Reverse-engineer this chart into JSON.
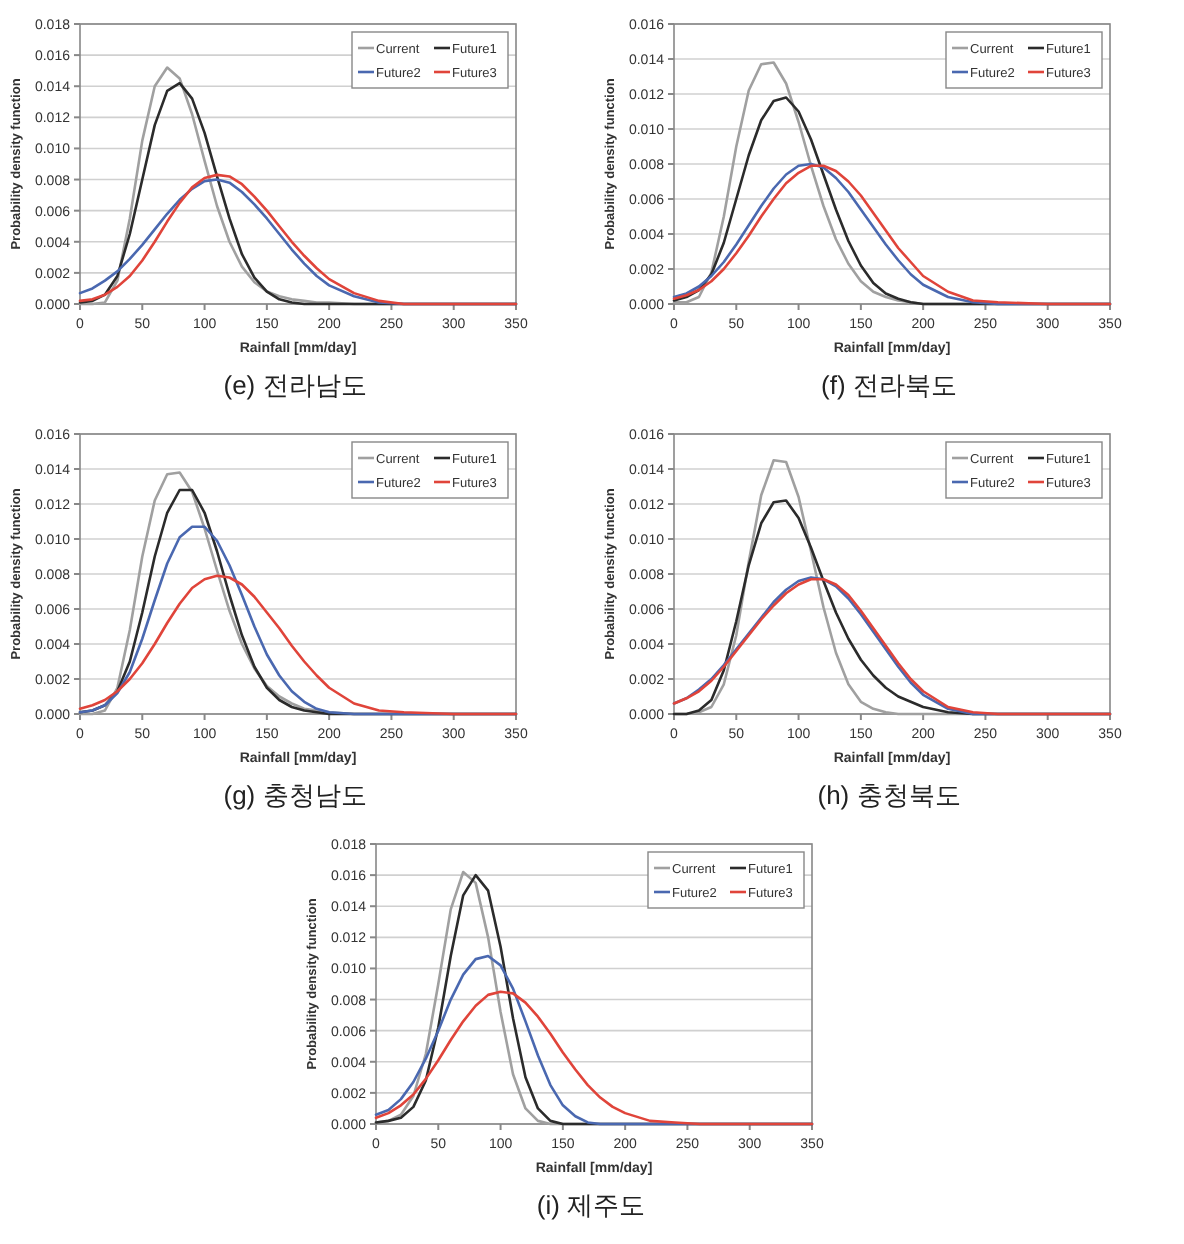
{
  "chart_data": [
    {
      "type": "line",
      "title": "(e) 전라남도",
      "xlabel": "Rainfall [mm/day]",
      "ylabel": "Probability density function",
      "grid": "y",
      "legend": "top right",
      "xlim": [
        0,
        350
      ],
      "xticks": [
        0,
        50,
        100,
        150,
        200,
        250,
        300,
        350
      ],
      "ylim": [
        0,
        0.018
      ],
      "yticks": [
        {
          "value": 0,
          "label": "0.000"
        },
        {
          "value": 0.002,
          "label": "0.002"
        },
        {
          "value": 0.004,
          "label": "0.004"
        },
        {
          "value": 0.006,
          "label": "0.006"
        },
        {
          "value": 0.008,
          "label": "0.008"
        },
        {
          "value": 0.01,
          "label": "0.010"
        },
        {
          "value": 0.012,
          "label": "0.012"
        },
        {
          "value": 0.014,
          "label": "0.014"
        },
        {
          "value": 0.016,
          "label": "0.016"
        },
        {
          "value": 0.018,
          "label": "0.018"
        }
      ],
      "x": [
        0,
        10,
        20,
        30,
        40,
        50,
        60,
        70,
        80,
        90,
        100,
        110,
        120,
        130,
        140,
        150,
        160,
        170,
        180,
        190,
        200,
        220,
        240,
        260,
        300,
        350
      ],
      "series": [
        {
          "name": "Current",
          "color": "#a0a0a0",
          "values": [
            0,
            0,
            0.0001,
            0.0015,
            0.0055,
            0.0105,
            0.014,
            0.0152,
            0.0145,
            0.0122,
            0.0092,
            0.0063,
            0.004,
            0.0024,
            0.0014,
            0.0008,
            0.0005,
            0.0003,
            0.0002,
            0.0001,
            0.0001,
            0,
            0,
            0,
            0,
            0
          ]
        },
        {
          "name": "Future1",
          "color": "#2b2b2b",
          "values": [
            0.0001,
            0.0002,
            0.0006,
            0.0018,
            0.0045,
            0.008,
            0.0115,
            0.0137,
            0.0142,
            0.0132,
            0.011,
            0.0082,
            0.0055,
            0.0032,
            0.0017,
            0.0008,
            0.0003,
            0.0001,
            0,
            0,
            0,
            0,
            0,
            0,
            0,
            0
          ]
        },
        {
          "name": "Future2",
          "color": "#4a68b0",
          "values": [
            0.0007,
            0.001,
            0.0015,
            0.0021,
            0.0029,
            0.0038,
            0.0048,
            0.0058,
            0.0067,
            0.0074,
            0.0079,
            0.008,
            0.0078,
            0.0072,
            0.0064,
            0.0055,
            0.0045,
            0.0035,
            0.0026,
            0.0018,
            0.0012,
            0.0005,
            0.0001,
            0,
            0,
            0
          ]
        },
        {
          "name": "Future3",
          "color": "#e0443a",
          "values": [
            0.0002,
            0.0003,
            0.0006,
            0.0011,
            0.0018,
            0.0028,
            0.004,
            0.0053,
            0.0065,
            0.0075,
            0.0081,
            0.0083,
            0.0082,
            0.0077,
            0.0069,
            0.006,
            0.005,
            0.004,
            0.0031,
            0.0023,
            0.0016,
            0.0007,
            0.0002,
            0,
            0,
            0
          ]
        }
      ]
    },
    {
      "type": "line",
      "title": "(f) 전라북도",
      "xlabel": "Rainfall [mm/day]",
      "ylabel": "Probability density function",
      "grid": "y",
      "legend": "top right",
      "xlim": [
        0,
        350
      ],
      "xticks": [
        0,
        50,
        100,
        150,
        200,
        250,
        300,
        350
      ],
      "ylim": [
        0,
        0.016
      ],
      "yticks": [
        {
          "value": 0,
          "label": "0.000"
        },
        {
          "value": 0.002,
          "label": "0.002"
        },
        {
          "value": 0.004,
          "label": "0.004"
        },
        {
          "value": 0.006,
          "label": "0.006"
        },
        {
          "value": 0.008,
          "label": "0.008"
        },
        {
          "value": 0.01,
          "label": "0.010"
        },
        {
          "value": 0.012,
          "label": "0.012"
        },
        {
          "value": 0.014,
          "label": "0.014"
        },
        {
          "value": 0.016,
          "label": "0.016"
        }
      ],
      "x": [
        0,
        10,
        20,
        30,
        40,
        50,
        60,
        70,
        80,
        90,
        100,
        110,
        120,
        130,
        140,
        150,
        160,
        170,
        180,
        190,
        200,
        220,
        240,
        260,
        300,
        350
      ],
      "series": [
        {
          "name": "Current",
          "color": "#a0a0a0",
          "values": [
            0.0001,
            0.0001,
            0.0004,
            0.0018,
            0.005,
            0.009,
            0.0122,
            0.0137,
            0.0138,
            0.0126,
            0.0104,
            0.0079,
            0.0056,
            0.0037,
            0.0023,
            0.0013,
            0.0007,
            0.0004,
            0.0002,
            0.0001,
            0,
            0,
            0,
            0,
            0,
            0
          ]
        },
        {
          "name": "Future1",
          "color": "#2b2b2b",
          "values": [
            0.0002,
            0.0004,
            0.0008,
            0.0017,
            0.0035,
            0.006,
            0.0085,
            0.0105,
            0.0116,
            0.0118,
            0.011,
            0.0094,
            0.0074,
            0.0054,
            0.0036,
            0.0022,
            0.0012,
            0.0006,
            0.0003,
            0.0001,
            0,
            0,
            0,
            0,
            0,
            0
          ]
        },
        {
          "name": "Future2",
          "color": "#4a68b0",
          "values": [
            0.0004,
            0.0006,
            0.001,
            0.0016,
            0.0024,
            0.0034,
            0.0045,
            0.0056,
            0.0066,
            0.0074,
            0.0079,
            0.008,
            0.0078,
            0.0072,
            0.0064,
            0.0054,
            0.0044,
            0.0034,
            0.0025,
            0.0017,
            0.0011,
            0.0004,
            0.0001,
            0,
            0,
            0
          ]
        },
        {
          "name": "Future3",
          "color": "#e0443a",
          "values": [
            0.0003,
            0.0005,
            0.0008,
            0.0013,
            0.002,
            0.0029,
            0.0039,
            0.005,
            0.006,
            0.0069,
            0.0075,
            0.0079,
            0.0079,
            0.0076,
            0.007,
            0.0062,
            0.0052,
            0.0042,
            0.0032,
            0.0024,
            0.0016,
            0.0007,
            0.0002,
            0.0001,
            0,
            0
          ]
        }
      ]
    },
    {
      "type": "line",
      "title": "(g) 충청남도",
      "xlabel": "Rainfall [mm/day]",
      "ylabel": "Probability density function",
      "grid": "y",
      "legend": "top right",
      "xlim": [
        0,
        350
      ],
      "xticks": [
        0,
        50,
        100,
        150,
        200,
        250,
        300,
        350
      ],
      "ylim": [
        0,
        0.016
      ],
      "yticks": [
        {
          "value": 0,
          "label": "0.000"
        },
        {
          "value": 0.002,
          "label": "0.002"
        },
        {
          "value": 0.004,
          "label": "0.004"
        },
        {
          "value": 0.006,
          "label": "0.006"
        },
        {
          "value": 0.008,
          "label": "0.008"
        },
        {
          "value": 0.01,
          "label": "0.010"
        },
        {
          "value": 0.012,
          "label": "0.012"
        },
        {
          "value": 0.014,
          "label": "0.014"
        },
        {
          "value": 0.016,
          "label": "0.016"
        }
      ],
      "x": [
        0,
        10,
        20,
        30,
        40,
        50,
        60,
        70,
        80,
        90,
        100,
        110,
        120,
        130,
        140,
        150,
        160,
        170,
        180,
        190,
        200,
        220,
        240,
        260,
        300,
        350
      ],
      "series": [
        {
          "name": "Current",
          "color": "#a0a0a0",
          "values": [
            0,
            0,
            0.0002,
            0.0015,
            0.0048,
            0.009,
            0.0122,
            0.0137,
            0.0138,
            0.0127,
            0.0106,
            0.0082,
            0.0059,
            0.004,
            0.0026,
            0.0016,
            0.001,
            0.0006,
            0.0003,
            0.0002,
            0.0001,
            0,
            0,
            0,
            0,
            0
          ]
        },
        {
          "name": "Future1",
          "color": "#2b2b2b",
          "values": [
            0.0001,
            0.0002,
            0.0005,
            0.0013,
            0.003,
            0.0058,
            0.009,
            0.0115,
            0.0128,
            0.0128,
            0.0115,
            0.0093,
            0.0068,
            0.0045,
            0.0027,
            0.0015,
            0.0008,
            0.0004,
            0.0002,
            0.0001,
            0,
            0,
            0,
            0,
            0,
            0
          ]
        },
        {
          "name": "Future2",
          "color": "#4a68b0",
          "values": [
            0.0001,
            0.0002,
            0.0005,
            0.0012,
            0.0024,
            0.0043,
            0.0065,
            0.0086,
            0.0101,
            0.0107,
            0.0107,
            0.0099,
            0.0085,
            0.0068,
            0.005,
            0.0034,
            0.0022,
            0.0013,
            0.0007,
            0.0003,
            0.0001,
            0,
            0,
            0,
            0,
            0
          ]
        },
        {
          "name": "Future3",
          "color": "#e0443a",
          "values": [
            0.0003,
            0.0005,
            0.0008,
            0.0013,
            0.002,
            0.0029,
            0.004,
            0.0052,
            0.0063,
            0.0072,
            0.0077,
            0.0079,
            0.0078,
            0.0074,
            0.0067,
            0.0058,
            0.0049,
            0.0039,
            0.003,
            0.0022,
            0.0015,
            0.0006,
            0.0002,
            0.0001,
            0,
            0
          ]
        }
      ]
    },
    {
      "type": "line",
      "title": "(h) 충청북도",
      "xlabel": "Rainfall [mm/day]",
      "ylabel": "Probability density function",
      "grid": "y",
      "legend": "top right",
      "xlim": [
        0,
        350
      ],
      "xticks": [
        0,
        50,
        100,
        150,
        200,
        250,
        300,
        350
      ],
      "ylim": [
        0,
        0.016
      ],
      "yticks": [
        {
          "value": 0,
          "label": "0.000"
        },
        {
          "value": 0.002,
          "label": "0.002"
        },
        {
          "value": 0.004,
          "label": "0.004"
        },
        {
          "value": 0.006,
          "label": "0.006"
        },
        {
          "value": 0.008,
          "label": "0.008"
        },
        {
          "value": 0.01,
          "label": "0.010"
        },
        {
          "value": 0.012,
          "label": "0.012"
        },
        {
          "value": 0.014,
          "label": "0.014"
        },
        {
          "value": 0.016,
          "label": "0.016"
        }
      ],
      "x": [
        0,
        10,
        20,
        30,
        40,
        50,
        60,
        70,
        80,
        90,
        100,
        110,
        120,
        130,
        140,
        150,
        160,
        170,
        180,
        190,
        200,
        220,
        240,
        260,
        300,
        350
      ],
      "series": [
        {
          "name": "Current",
          "color": "#a0a0a0",
          "values": [
            0,
            0,
            0.0001,
            0.0004,
            0.0017,
            0.0045,
            0.0087,
            0.0125,
            0.0145,
            0.0144,
            0.0124,
            0.0093,
            0.0061,
            0.0035,
            0.0017,
            0.0007,
            0.0003,
            0.0001,
            0,
            0,
            0,
            0,
            0,
            0,
            0,
            0
          ]
        },
        {
          "name": "Future1",
          "color": "#2b2b2b",
          "values": [
            0,
            0,
            0.0002,
            0.0008,
            0.0025,
            0.0053,
            0.0085,
            0.0109,
            0.0121,
            0.0122,
            0.0112,
            0.0095,
            0.0076,
            0.0058,
            0.0043,
            0.0031,
            0.0022,
            0.0015,
            0.001,
            0.0007,
            0.0004,
            0.0001,
            0,
            0,
            0,
            0
          ]
        },
        {
          "name": "Future2",
          "color": "#4a68b0",
          "values": [
            0.0006,
            0.0009,
            0.0014,
            0.002,
            0.0028,
            0.0037,
            0.0046,
            0.0055,
            0.0064,
            0.0071,
            0.0076,
            0.0078,
            0.0077,
            0.0073,
            0.0066,
            0.0057,
            0.0047,
            0.0037,
            0.0027,
            0.0018,
            0.0011,
            0.0003,
            0,
            0,
            0,
            0
          ]
        },
        {
          "name": "Future3",
          "color": "#e0443a",
          "values": [
            0.0006,
            0.0009,
            0.0013,
            0.0019,
            0.0027,
            0.0036,
            0.0045,
            0.0054,
            0.0062,
            0.0069,
            0.0074,
            0.0077,
            0.0077,
            0.0074,
            0.0068,
            0.0059,
            0.0049,
            0.0039,
            0.0029,
            0.002,
            0.0013,
            0.0004,
            0.0001,
            0,
            0,
            0
          ]
        }
      ]
    },
    {
      "type": "line",
      "title": "(i) 제주도",
      "xlabel": "Rainfall [mm/day]",
      "ylabel": "Probability density function",
      "grid": "y",
      "legend": "top right",
      "xlim": [
        0,
        350
      ],
      "xticks": [
        0,
        50,
        100,
        150,
        200,
        250,
        300,
        350
      ],
      "ylim": [
        0,
        0.018
      ],
      "yticks": [
        {
          "value": 0,
          "label": "0.000"
        },
        {
          "value": 0.002,
          "label": "0.002"
        },
        {
          "value": 0.004,
          "label": "0.004"
        },
        {
          "value": 0.006,
          "label": "0.006"
        },
        {
          "value": 0.008,
          "label": "0.008"
        },
        {
          "value": 0.01,
          "label": "0.010"
        },
        {
          "value": 0.012,
          "label": "0.012"
        },
        {
          "value": 0.014,
          "label": "0.014"
        },
        {
          "value": 0.016,
          "label": "0.016"
        },
        {
          "value": 0.018,
          "label": "0.018"
        }
      ],
      "x": [
        0,
        10,
        20,
        30,
        40,
        50,
        60,
        70,
        80,
        90,
        100,
        110,
        120,
        130,
        140,
        150,
        160,
        170,
        180,
        190,
        200,
        220,
        240,
        260,
        300,
        350
      ],
      "series": [
        {
          "name": "Current",
          "color": "#a0a0a0",
          "values": [
            0.0001,
            0.0002,
            0.0006,
            0.0018,
            0.0045,
            0.009,
            0.0138,
            0.0162,
            0.0155,
            0.012,
            0.0072,
            0.0032,
            0.001,
            0.0002,
            0,
            0,
            0,
            0,
            0,
            0,
            0,
            0,
            0,
            0,
            0,
            0
          ]
        },
        {
          "name": "Future1",
          "color": "#2b2b2b",
          "values": [
            0.0001,
            0.0002,
            0.0004,
            0.0011,
            0.0028,
            0.0062,
            0.0108,
            0.0147,
            0.016,
            0.015,
            0.0114,
            0.0068,
            0.003,
            0.001,
            0.0002,
            0,
            0,
            0,
            0,
            0,
            0,
            0,
            0,
            0,
            0,
            0
          ]
        },
        {
          "name": "Future2",
          "color": "#4a68b0",
          "values": [
            0.0006,
            0.0009,
            0.0016,
            0.0027,
            0.0042,
            0.006,
            0.008,
            0.0096,
            0.0106,
            0.0108,
            0.0102,
            0.0087,
            0.0066,
            0.0044,
            0.0025,
            0.0012,
            0.0005,
            0.0001,
            0,
            0,
            0,
            0,
            0,
            0,
            0,
            0
          ]
        },
        {
          "name": "Future3",
          "color": "#e0443a",
          "values": [
            0.0004,
            0.0007,
            0.0012,
            0.0019,
            0.0029,
            0.0041,
            0.0054,
            0.0066,
            0.0076,
            0.0083,
            0.0085,
            0.0084,
            0.0078,
            0.0069,
            0.0058,
            0.0046,
            0.0035,
            0.0025,
            0.0017,
            0.0011,
            0.0007,
            0.0002,
            0.0001,
            0,
            0,
            0
          ]
        }
      ]
    }
  ]
}
